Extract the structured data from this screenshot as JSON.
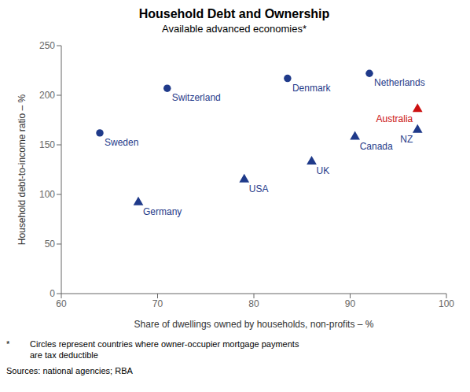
{
  "chart_data": {
    "type": "scatter",
    "title": "Household Debt and Ownership",
    "subtitle": "Available advanced economies*",
    "xlabel": "Share of dwellings owned by households, non-profits – %",
    "ylabel": "Household debt-to-income ratio – %",
    "xlim": [
      60,
      100
    ],
    "ylim": [
      0,
      250
    ],
    "xticks": [
      60,
      70,
      80,
      90,
      100
    ],
    "yticks": [
      0,
      50,
      100,
      150,
      200,
      250
    ],
    "grid": false,
    "series": [
      {
        "marker": "circle",
        "color": "#1f3a8a",
        "labels": [
          "Sweden",
          "Switzerland",
          "Denmark",
          "Netherlands"
        ],
        "x": [
          64.0,
          71.0,
          83.5,
          92.0
        ],
        "values": [
          162,
          207,
          217,
          222
        ]
      },
      {
        "marker": "triangle",
        "color": "#1f3a8a",
        "labels": [
          "Germany",
          "USA",
          "UK",
          "Canada",
          "NZ"
        ],
        "x": [
          68.0,
          79.0,
          86.0,
          90.5,
          97.0
        ],
        "values": [
          92,
          115,
          133,
          158,
          165
        ]
      },
      {
        "marker": "triangle",
        "color": "#cc1111",
        "labels": [
          "Australia"
        ],
        "x": [
          97.0
        ],
        "values": [
          186
        ]
      }
    ],
    "footnote_star": "*",
    "footnote": "Circles represent countries where owner-occupier mortgage payments\nare tax deductible",
    "source": "Sources:  national agencies; RBA"
  }
}
